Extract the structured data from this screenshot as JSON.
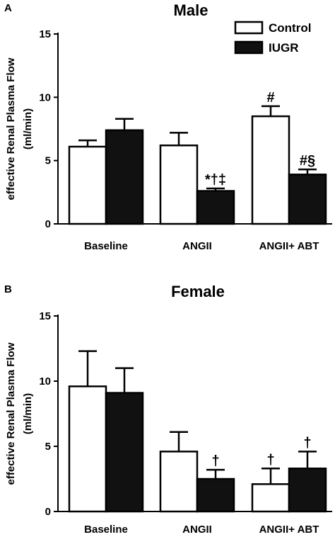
{
  "chart_data": [
    {
      "type": "bar",
      "panel_label": "A",
      "title": "Male",
      "ylabel_line1": "effective Renal Plasma Flow",
      "ylabel_line2": "(ml/min)",
      "ylim": [
        0,
        15
      ],
      "yticks": [
        "0",
        "5",
        "10",
        "15"
      ],
      "categories": [
        "Baseline",
        "ANGII",
        "ANGII+ ABT"
      ],
      "legend": {
        "placement": "top-right",
        "entries": [
          "Control",
          "IUGR"
        ]
      },
      "series": [
        {
          "name": "Control",
          "fill": "#ffffff",
          "values": [
            6.1,
            6.2,
            8.5
          ],
          "errors": [
            0.5,
            1.0,
            0.8
          ],
          "annotations": [
            "",
            "",
            "#"
          ]
        },
        {
          "name": "IUGR",
          "fill": "#111111",
          "values": [
            7.4,
            2.6,
            3.9
          ],
          "errors": [
            0.9,
            0.2,
            0.4
          ],
          "annotations": [
            "",
            "*†‡",
            "#§"
          ]
        }
      ]
    },
    {
      "type": "bar",
      "panel_label": "B",
      "title": "Female",
      "ylabel_line1": "effective Renal Plasma Flow",
      "ylabel_line2": "(ml/min)",
      "ylim": [
        0,
        15
      ],
      "yticks": [
        "0",
        "5",
        "10",
        "15"
      ],
      "categories": [
        "Baseline",
        "ANGII",
        "ANGII+ ABT"
      ],
      "series": [
        {
          "name": "Control",
          "fill": "#ffffff",
          "values": [
            9.6,
            4.6,
            2.1
          ],
          "errors": [
            2.7,
            1.5,
            1.2
          ],
          "annotations": [
            "",
            "",
            "†"
          ]
        },
        {
          "name": "IUGR",
          "fill": "#111111",
          "values": [
            9.1,
            2.5,
            3.3
          ],
          "errors": [
            1.9,
            0.7,
            1.3
          ],
          "annotations": [
            "",
            "†",
            "†"
          ]
        }
      ]
    }
  ]
}
